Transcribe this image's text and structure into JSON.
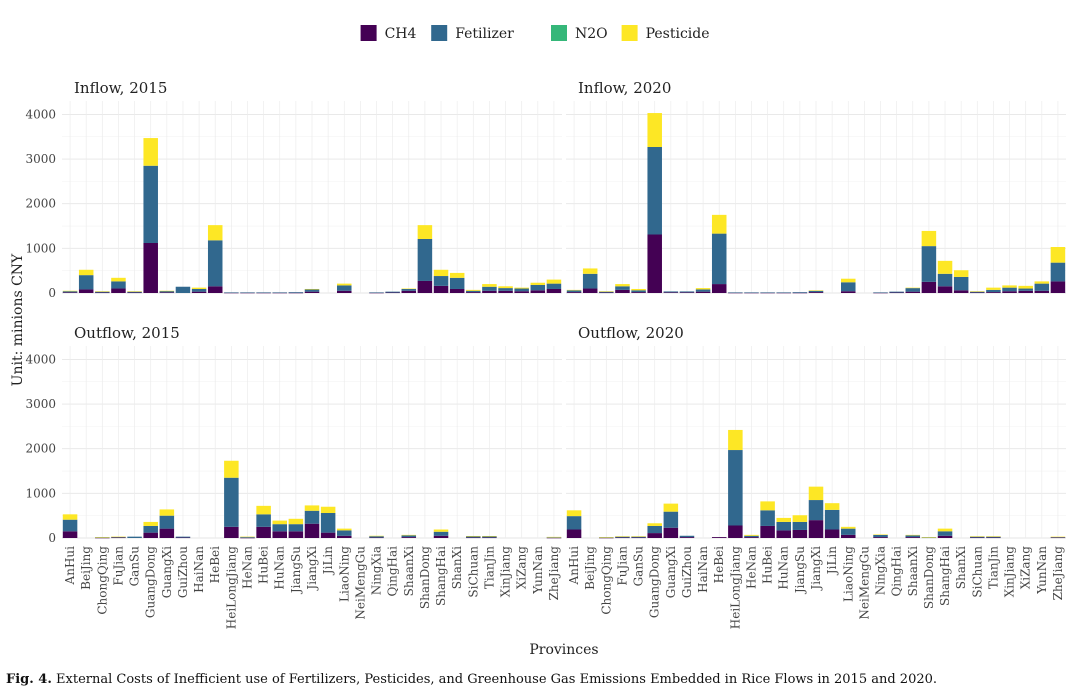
{
  "legend": [
    {
      "name": "CH4",
      "color": "#440154"
    },
    {
      "name": "Fetilizer",
      "color": "#31688E"
    },
    {
      "name": "N2O",
      "color": "#35B779"
    },
    {
      "name": "Pesticide",
      "color": "#FDE725"
    }
  ],
  "y_axis_label": "Unit: minions CNY",
  "x_axis_label": "Provinces",
  "caption": {
    "label": "Fig. 4.",
    "text": "External Costs of Inefficient use of Fertilizers, Pesticides, and Greenhouse Gas Emissions Embedded in Rice Flows in 2015 and 2020."
  },
  "chart_data": {
    "type": "bar",
    "stacked": true,
    "legend_position": "top",
    "grid": true,
    "ylim": [
      0,
      4300
    ],
    "y_ticks": [
      0,
      1000,
      2000,
      3000,
      4000
    ],
    "categories": [
      "AnHui",
      "BeiJing",
      "ChongQing",
      "FuJian",
      "GanSu",
      "GuangDong",
      "GuangXi",
      "GuiZhou",
      "HaiNan",
      "HeBei",
      "HeiLongJiang",
      "HeNan",
      "HuBei",
      "HuNan",
      "JiangSu",
      "JiangXi",
      "JiLin",
      "LiaoNing",
      "NeiMengGu",
      "NingXia",
      "QingHai",
      "ShaanXi",
      "ShanDong",
      "ShangHai",
      "ShanXi",
      "SiChuan",
      "TianJin",
      "XinJiang",
      "XiZang",
      "YunNan",
      "ZheJiang"
    ],
    "panels": [
      {
        "title": "Inflow, 2015",
        "series": [
          {
            "name": "CH4",
            "values": [
              15,
              80,
              10,
              100,
              10,
              1120,
              15,
              0,
              30,
              150,
              5,
              5,
              5,
              5,
              5,
              30,
              0,
              50,
              0,
              5,
              10,
              50,
              270,
              160,
              90,
              20,
              50,
              50,
              40,
              60,
              90
            ]
          },
          {
            "name": "Fetilizer",
            "values": [
              25,
              320,
              20,
              160,
              20,
              1730,
              30,
              140,
              60,
              1030,
              10,
              10,
              10,
              10,
              15,
              50,
              0,
              120,
              0,
              10,
              20,
              40,
              940,
              220,
              250,
              30,
              90,
              60,
              60,
              120,
              120
            ]
          },
          {
            "name": "N2O",
            "values": [
              0,
              0,
              0,
              0,
              0,
              0,
              0,
              0,
              0,
              0,
              0,
              0,
              0,
              0,
              0,
              0,
              0,
              0,
              0,
              0,
              0,
              0,
              0,
              0,
              0,
              0,
              0,
              0,
              0,
              0,
              0
            ]
          },
          {
            "name": "Pesticide",
            "values": [
              10,
              120,
              10,
              80,
              10,
              620,
              5,
              0,
              30,
              340,
              0,
              0,
              0,
              0,
              0,
              10,
              0,
              40,
              0,
              0,
              0,
              10,
              310,
              140,
              110,
              20,
              60,
              40,
              20,
              50,
              90
            ]
          }
        ]
      },
      {
        "title": "Inflow, 2020",
        "series": [
          {
            "name": "CH4",
            "values": [
              20,
              100,
              10,
              70,
              20,
              1310,
              15,
              15,
              30,
              200,
              5,
              5,
              5,
              5,
              5,
              20,
              0,
              40,
              0,
              5,
              10,
              30,
              250,
              150,
              60,
              10,
              20,
              40,
              50,
              50,
              260
            ]
          },
          {
            "name": "Fetilizer",
            "values": [
              40,
              330,
              20,
              80,
              40,
              1960,
              20,
              20,
              50,
              1130,
              10,
              10,
              10,
              10,
              15,
              30,
              0,
              200,
              0,
              10,
              20,
              80,
              800,
              280,
              300,
              20,
              50,
              80,
              50,
              160,
              420
            ]
          },
          {
            "name": "N2O",
            "values": [
              0,
              0,
              0,
              0,
              0,
              0,
              0,
              0,
              0,
              0,
              0,
              0,
              0,
              0,
              0,
              0,
              0,
              0,
              0,
              0,
              0,
              0,
              0,
              0,
              0,
              0,
              0,
              0,
              0,
              0,
              0
            ]
          },
          {
            "name": "Pesticide",
            "values": [
              10,
              120,
              10,
              50,
              30,
              760,
              0,
              0,
              30,
              420,
              0,
              0,
              0,
              0,
              0,
              10,
              0,
              80,
              0,
              0,
              0,
              10,
              340,
              290,
              150,
              10,
              50,
              50,
              60,
              50,
              350
            ]
          }
        ]
      },
      {
        "title": "Outflow, 2015",
        "series": [
          {
            "name": "CH4",
            "values": [
              150,
              0,
              5,
              10,
              0,
              120,
              210,
              10,
              0,
              0,
              250,
              5,
              250,
              150,
              150,
              320,
              120,
              50,
              0,
              10,
              0,
              20,
              0,
              50,
              0,
              10,
              10,
              0,
              0,
              0,
              5
            ]
          },
          {
            "name": "Fetilizer",
            "values": [
              260,
              0,
              10,
              15,
              30,
              150,
              290,
              20,
              0,
              0,
              1100,
              20,
              280,
              160,
              160,
              290,
              440,
              120,
              0,
              30,
              0,
              40,
              0,
              90,
              0,
              25,
              25,
              0,
              0,
              0,
              10
            ]
          },
          {
            "name": "N2O",
            "values": [
              0,
              0,
              0,
              0,
              0,
              0,
              0,
              0,
              0,
              0,
              0,
              0,
              0,
              0,
              0,
              0,
              0,
              0,
              0,
              0,
              0,
              0,
              0,
              0,
              0,
              0,
              0,
              0,
              0,
              0,
              0
            ]
          },
          {
            "name": "Pesticide",
            "values": [
              120,
              0,
              5,
              5,
              0,
              90,
              140,
              0,
              0,
              0,
              380,
              5,
              190,
              80,
              120,
              120,
              140,
              40,
              0,
              10,
              0,
              10,
              0,
              50,
              0,
              10,
              10,
              0,
              0,
              0,
              10
            ]
          }
        ]
      },
      {
        "title": "Outflow, 2020",
        "series": [
          {
            "name": "CH4",
            "values": [
              190,
              0,
              5,
              10,
              10,
              110,
              230,
              20,
              0,
              20,
              280,
              20,
              270,
              170,
              180,
              400,
              190,
              70,
              0,
              20,
              0,
              20,
              0,
              50,
              0,
              10,
              10,
              0,
              0,
              0,
              10
            ]
          },
          {
            "name": "Fetilizer",
            "values": [
              300,
              0,
              10,
              20,
              20,
              160,
              360,
              30,
              0,
              0,
              1690,
              30,
              350,
              190,
              180,
              450,
              440,
              140,
              0,
              50,
              0,
              40,
              10,
              100,
              0,
              20,
              20,
              0,
              0,
              0,
              10
            ]
          },
          {
            "name": "N2O",
            "values": [
              0,
              0,
              0,
              0,
              0,
              0,
              0,
              0,
              0,
              0,
              0,
              0,
              0,
              0,
              0,
              0,
              0,
              0,
              0,
              0,
              0,
              0,
              0,
              0,
              0,
              0,
              0,
              0,
              0,
              0,
              0
            ]
          },
          {
            "name": "Pesticide",
            "values": [
              130,
              0,
              5,
              10,
              10,
              60,
              180,
              0,
              0,
              0,
              450,
              20,
              200,
              90,
              150,
              300,
              150,
              40,
              0,
              10,
              0,
              10,
              10,
              60,
              0,
              10,
              10,
              0,
              0,
              0,
              10
            ]
          }
        ]
      }
    ]
  }
}
